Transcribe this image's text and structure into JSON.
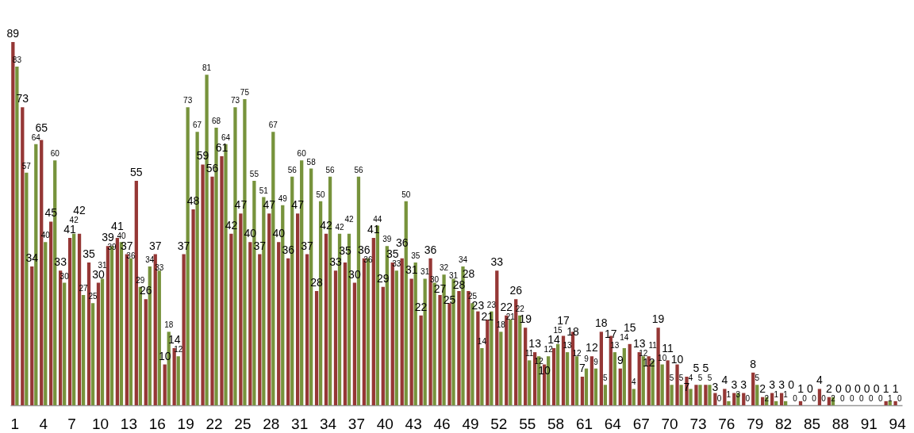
{
  "chart_data": {
    "type": "bar",
    "categories": [
      "1",
      null,
      null,
      "4",
      null,
      null,
      "7",
      null,
      null,
      "10",
      null,
      null,
      "13",
      null,
      null,
      "16",
      null,
      null,
      "19",
      null,
      null,
      "22",
      null,
      null,
      "25",
      null,
      null,
      "28",
      null,
      null,
      "31",
      null,
      null,
      "34",
      null,
      null,
      "37",
      null,
      null,
      "40",
      null,
      null,
      "43",
      null,
      null,
      "46",
      null,
      null,
      "49",
      null,
      null,
      "52",
      null,
      null,
      "55",
      null,
      null,
      "58",
      null,
      null,
      "61",
      null,
      null,
      "64",
      null,
      null,
      "67",
      null,
      null,
      "70",
      null,
      null,
      "73",
      null,
      null,
      "76",
      null,
      null,
      "79",
      null,
      null,
      "82",
      null,
      null,
      "85",
      null,
      null,
      "88",
      null,
      null,
      "91",
      null,
      null,
      "94"
    ],
    "series": [
      {
        "color": "#953735",
        "values": [
          89,
          73,
          34,
          65,
          45,
          33,
          41,
          42,
          35,
          30,
          39,
          41,
          37,
          55,
          26,
          37,
          10,
          14,
          37,
          48,
          59,
          56,
          61,
          42,
          47,
          40,
          37,
          47,
          40,
          36,
          47,
          37,
          28,
          42,
          33,
          35,
          30,
          36,
          41,
          29,
          35,
          36,
          31,
          22,
          36,
          27,
          25,
          28,
          28,
          23,
          21,
          33,
          22,
          26,
          19,
          13,
          10,
          14,
          17,
          18,
          7,
          12,
          18,
          17,
          9,
          15,
          13,
          12,
          19,
          11,
          10,
          7,
          5,
          5,
          3,
          4,
          3,
          3,
          8,
          2,
          3,
          3,
          0,
          1,
          0,
          4,
          2,
          0,
          0,
          0,
          0,
          0,
          1,
          1
        ]
      },
      {
        "color": "#77933c",
        "values": [
          83,
          57,
          64,
          40,
          60,
          30,
          42,
          27,
          25,
          31,
          39,
          40,
          36,
          29,
          34,
          33,
          18,
          12,
          73,
          67,
          81,
          68,
          64,
          73,
          75,
          55,
          51,
          67,
          49,
          56,
          60,
          58,
          50,
          56,
          42,
          42,
          56,
          36,
          44,
          39,
          33,
          50,
          35,
          31,
          30,
          32,
          31,
          34,
          25,
          14,
          23,
          18,
          21,
          22,
          11,
          12,
          12,
          15,
          13,
          12,
          9,
          9,
          5,
          13,
          14,
          4,
          12,
          11,
          10,
          5,
          5,
          4,
          5,
          5,
          0,
          1,
          3,
          0,
          5,
          2,
          1,
          1,
          0,
          0,
          0,
          0,
          2,
          0,
          0,
          0,
          0,
          0,
          1,
          0
        ]
      }
    ],
    "data_labels": true,
    "legend": false
  }
}
